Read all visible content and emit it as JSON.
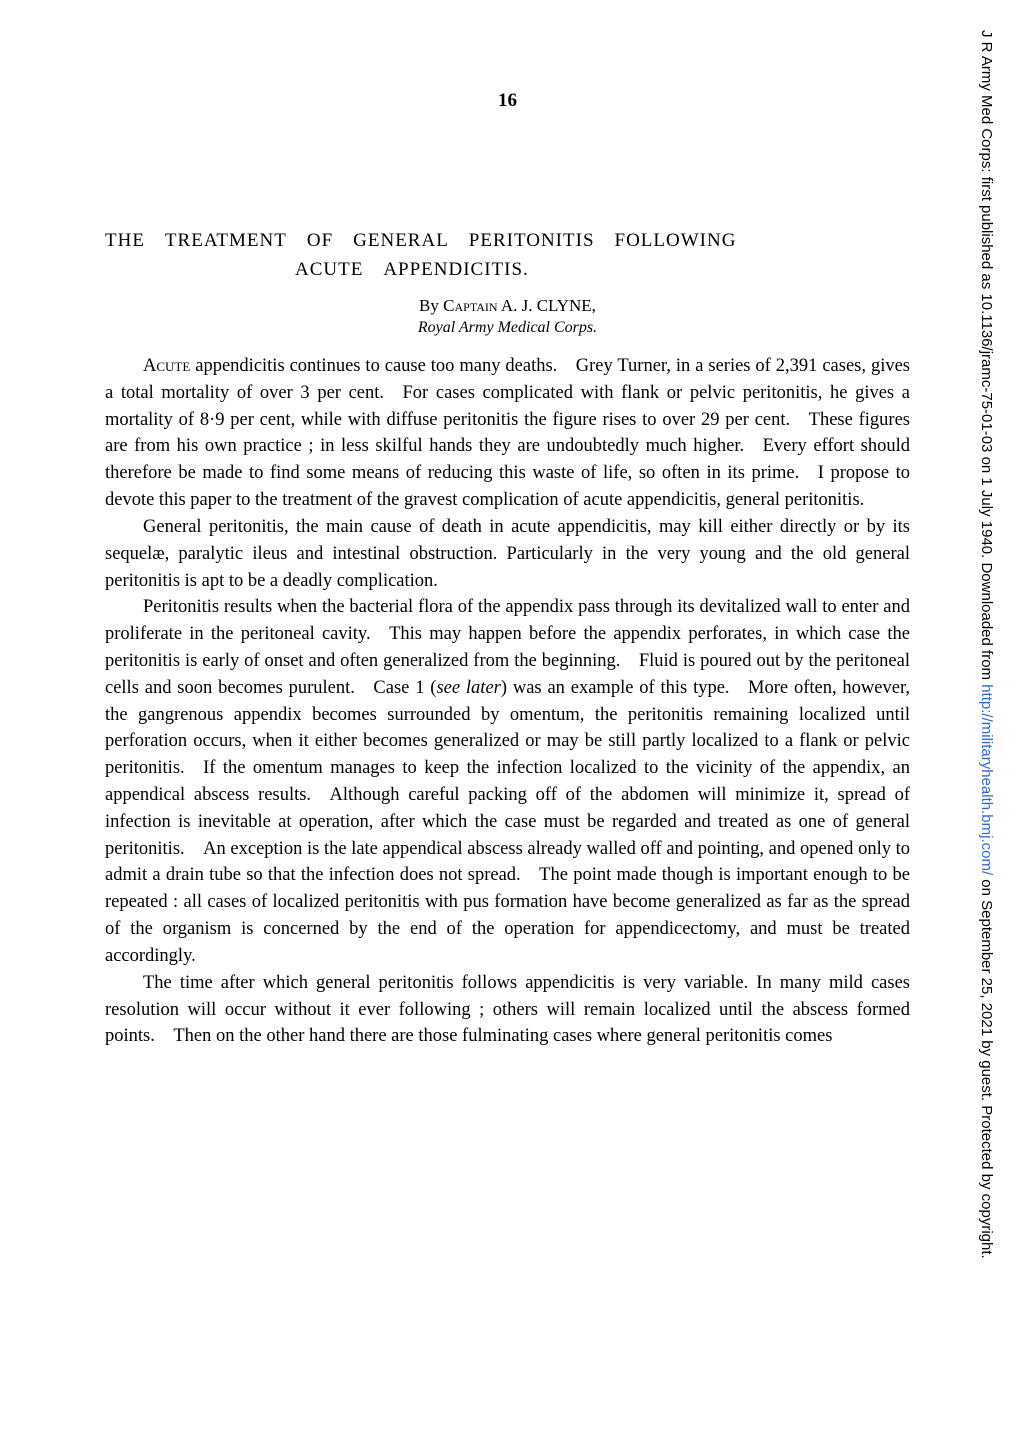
{
  "page_number": "16",
  "title": {
    "line1": "THE TREATMENT OF GENERAL PERITONITIS FOLLOWING",
    "line2": "ACUTE APPENDICITIS."
  },
  "byline": {
    "prefix": "By ",
    "author": "Captain A. J. CLYNE,"
  },
  "affiliation": "Royal Army Medical Corps.",
  "paragraphs": [
    {
      "leading_smallcaps": "Acute",
      "text": " appendicitis continues to cause too many deaths. Grey Turner, in a series of 2,391 cases, gives a total mortality of over 3 per cent. For cases complicated with flank or pelvic peritonitis, he gives a mortality of 8·9 per cent, while with diffuse peritonitis the figure rises to over 29 per cent. These figures are from his own practice ; in less skilful hands they are undoubtedly much higher. Every effort should therefore be made to find some means of reducing this waste of life, so often in its prime. I propose to devote this paper to the treatment of the gravest complication of acute appendicitis, general peritonitis."
    },
    {
      "text": "General peritonitis, the main cause of death in acute appendicitis, may kill either directly or by its sequelæ, paralytic ileus and intestinal obstruction. Particularly in the very young and the old general peritonitis is apt to be a deadly complication."
    },
    {
      "text_before_italic": "Peritonitis results when the bacterial flora of the appendix pass through its devitalized wall to enter and proliferate in the peritoneal cavity. This may happen before the appendix perforates, in which case the peritonitis is early of onset and often generalized from the beginning. Fluid is poured out by the peritoneal cells and soon becomes purulent. Case 1 (",
      "italic": "see later",
      "text_after_italic": ") was an example of this type. More often, however, the gangrenous appendix becomes surrounded by omentum, the peritonitis remaining localized until perforation occurs, when it either becomes generalized or may be still partly localized to a flank or pelvic peritonitis. If the omentum manages to keep the infection localized to the vicinity of the appendix, an appendical abscess results. Although careful packing off of the abdomen will minimize it, spread of infection is inevitable at operation, after which the case must be regarded and treated as one of general peritonitis. An exception is the late appendical abscess already walled off and pointing, and opened only to admit a drain tube so that the infection does not spread. The point made though is important enough to be repeated : all cases of localized peritonitis with pus formation have become generalized as far as the spread of the organism is concerned by the end of the operation for appendicectomy, and must be treated accordingly."
    },
    {
      "text": "The time after which general peritonitis follows appendicitis is very variable. In many mild cases resolution will occur without it ever following ; others will remain localized until the abscess formed points. Then on the other hand there are those fulminating cases where general peritonitis comes"
    }
  ],
  "sidebar": {
    "text_part1": "J R Army Med Corps: first published as 10.1136/jramc-75-01-03 on 1 July 1940. Downloaded from ",
    "link_text": "http://militaryhealth.bmj.com/",
    "text_part2": " on September 25, 2021 by guest. Protected by copyright."
  }
}
